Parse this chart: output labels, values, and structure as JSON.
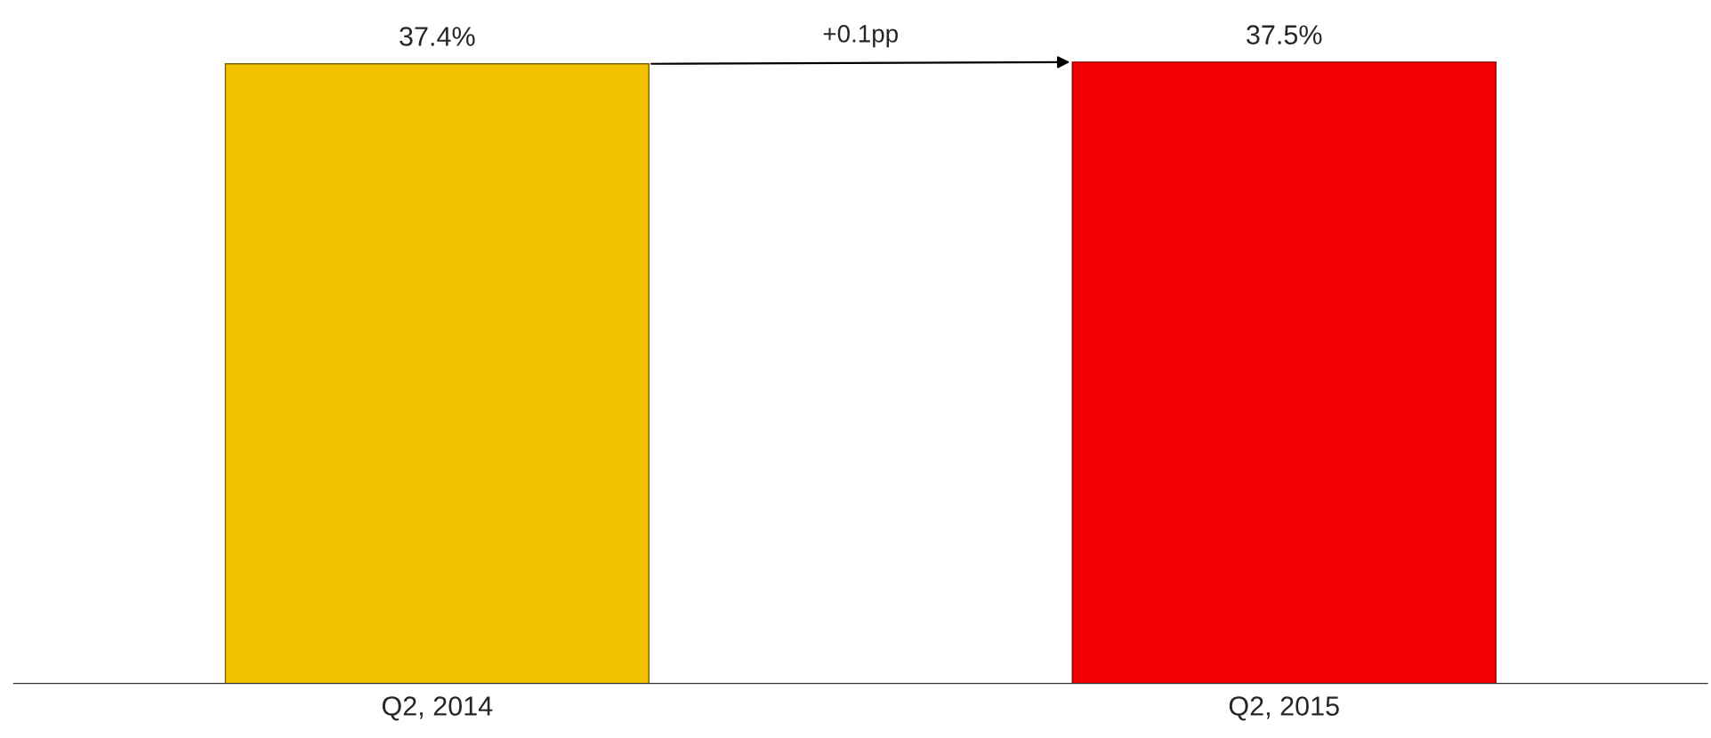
{
  "chart_data": {
    "type": "bar",
    "categories": [
      "Q2, 2014",
      "Q2, 2015"
    ],
    "values": [
      37.4,
      37.5
    ],
    "colors": [
      "#f2c200",
      "#f00000"
    ],
    "value_labels": [
      "37.4%",
      "37.5%"
    ],
    "tick_labels": "x",
    "grid": false,
    "legend": false,
    "annotations": [
      "+0.1pp"
    ]
  }
}
